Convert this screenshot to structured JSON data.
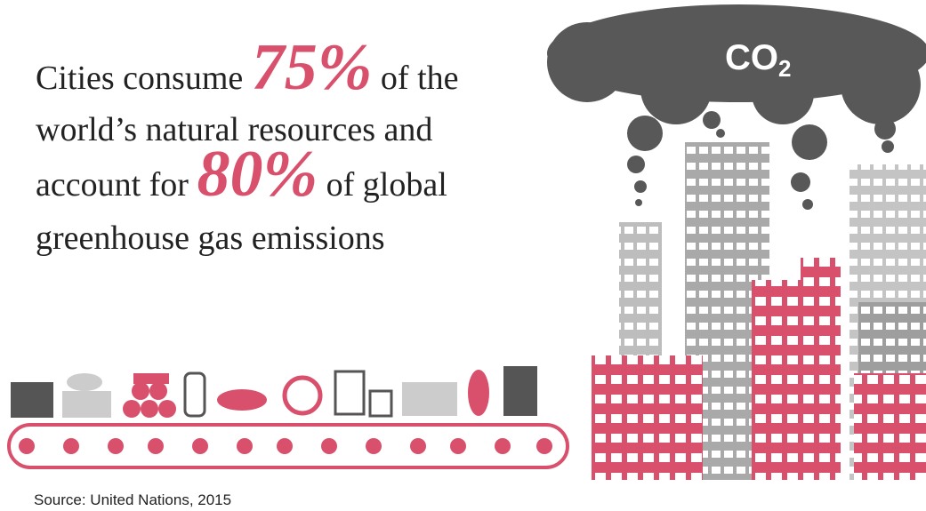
{
  "headline": {
    "line1": {
      "before": "Cities consume",
      "figure": "75%",
      "after": "of the"
    },
    "line2": "world’s natural resources and",
    "line3": {
      "before": "account for",
      "figure": "80%",
      "after": "of global"
    },
    "line4": "greenhouse gas emissions"
  },
  "cloud_label": {
    "text": "CO",
    "subscript": "2"
  },
  "source": "Source: United Nations, 2015"
}
